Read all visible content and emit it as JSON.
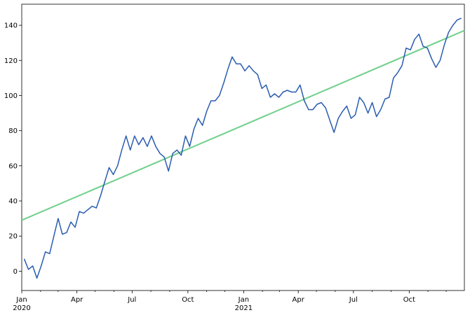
{
  "chart_data": {
    "type": "line",
    "title": "",
    "xlabel": "",
    "ylabel": "",
    "xlim": [
      "2020-01-01",
      "2021-12-31"
    ],
    "ylim": [
      -11,
      152
    ],
    "yticks": [
      0,
      20,
      40,
      60,
      80,
      100,
      120,
      140
    ],
    "xticks": [
      {
        "date": "2020-01-01",
        "label": "Jan",
        "year": "2020"
      },
      {
        "date": "2020-04-01",
        "label": "Apr",
        "year": ""
      },
      {
        "date": "2020-07-01",
        "label": "Jul",
        "year": ""
      },
      {
        "date": "2020-10-01",
        "label": "Oct",
        "year": ""
      },
      {
        "date": "2021-01-01",
        "label": "Jan",
        "year": "2021"
      },
      {
        "date": "2021-04-01",
        "label": "Apr",
        "year": ""
      },
      {
        "date": "2021-07-01",
        "label": "Jul",
        "year": ""
      },
      {
        "date": "2021-10-01",
        "label": "Oct",
        "year": ""
      }
    ],
    "minor_ticks": [
      "2020-02-01",
      "2020-03-01",
      "2020-05-01",
      "2020-06-01",
      "2020-08-01",
      "2020-09-01",
      "2020-11-01",
      "2020-12-01",
      "2021-02-01",
      "2021-03-01",
      "2021-05-01",
      "2021-06-01",
      "2021-08-01",
      "2021-09-01",
      "2021-11-01",
      "2021-12-01"
    ],
    "grid": false,
    "series": [
      {
        "color": "#2a5db0",
        "x": [
          "2020-01-05",
          "2020-01-12",
          "2020-01-19",
          "2020-01-26",
          "2020-02-02",
          "2020-02-09",
          "2020-02-16",
          "2020-02-23",
          "2020-03-01",
          "2020-03-08",
          "2020-03-15",
          "2020-03-22",
          "2020-03-29",
          "2020-04-05",
          "2020-04-12",
          "2020-04-19",
          "2020-04-26",
          "2020-05-03",
          "2020-05-10",
          "2020-05-17",
          "2020-05-24",
          "2020-05-31",
          "2020-06-07",
          "2020-06-14",
          "2020-06-21",
          "2020-06-28",
          "2020-07-05",
          "2020-07-12",
          "2020-07-19",
          "2020-07-26",
          "2020-08-02",
          "2020-08-09",
          "2020-08-16",
          "2020-08-23",
          "2020-08-30",
          "2020-09-06",
          "2020-09-13",
          "2020-09-20",
          "2020-09-27",
          "2020-10-04",
          "2020-10-11",
          "2020-10-18",
          "2020-10-25",
          "2020-11-01",
          "2020-11-08",
          "2020-11-15",
          "2020-11-22",
          "2020-11-29",
          "2020-12-06",
          "2020-12-13",
          "2020-12-20",
          "2020-12-27",
          "2021-01-03",
          "2021-01-10",
          "2021-01-17",
          "2021-01-24",
          "2021-01-31",
          "2021-02-07",
          "2021-02-14",
          "2021-02-21",
          "2021-02-28",
          "2021-03-07",
          "2021-03-14",
          "2021-03-21",
          "2021-03-28",
          "2021-04-04",
          "2021-04-11",
          "2021-04-18",
          "2021-04-25",
          "2021-05-02",
          "2021-05-09",
          "2021-05-16",
          "2021-05-23",
          "2021-05-30",
          "2021-06-06",
          "2021-06-13",
          "2021-06-20",
          "2021-06-27",
          "2021-07-04",
          "2021-07-11",
          "2021-07-18",
          "2021-07-25",
          "2021-08-01",
          "2021-08-08",
          "2021-08-15",
          "2021-08-22",
          "2021-08-29",
          "2021-09-05",
          "2021-09-12",
          "2021-09-19",
          "2021-09-26",
          "2021-10-03",
          "2021-10-10",
          "2021-10-17",
          "2021-10-24",
          "2021-10-31",
          "2021-11-07",
          "2021-11-14",
          "2021-11-21",
          "2021-11-28",
          "2021-12-05",
          "2021-12-12",
          "2021-12-19",
          "2021-12-26"
        ],
        "y": [
          7,
          1,
          3,
          -4,
          3,
          11,
          10,
          20,
          30,
          21,
          22,
          28,
          25,
          34,
          33,
          35,
          37,
          36,
          43,
          51,
          59,
          55,
          60,
          69,
          77,
          69,
          77,
          72,
          76,
          71,
          77,
          71,
          67,
          65,
          57,
          67,
          69,
          66,
          77,
          71,
          81,
          87,
          83,
          91,
          97,
          97,
          100,
          107,
          115,
          122,
          118,
          118,
          114,
          117,
          114,
          112,
          104,
          106,
          99,
          101,
          99,
          102,
          103,
          102,
          102,
          106,
          97,
          92,
          92,
          95,
          96,
          93,
          86,
          79,
          87,
          91,
          94,
          87,
          89,
          99,
          96,
          90,
          96,
          88,
          92,
          98,
          99,
          110,
          113,
          117,
          127,
          126,
          132,
          135,
          128,
          127,
          121,
          116,
          120,
          129,
          136,
          140,
          143,
          144
        ]
      },
      {
        "color": "#6fd08a",
        "x": [
          "2020-01-01",
          "2021-12-31"
        ],
        "y": [
          29,
          137
        ]
      }
    ]
  }
}
